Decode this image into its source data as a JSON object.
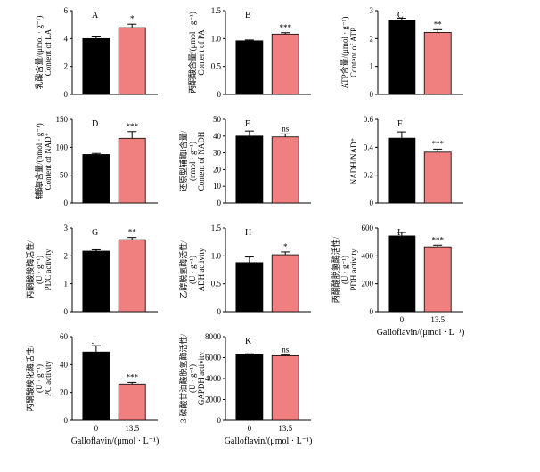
{
  "chart_data": [
    {
      "type": "bar",
      "panel": "A",
      "title": "A",
      "ylabel_cn": "乳酸含量/(μmol · g⁻¹)",
      "ylabel_en": "Content of LA",
      "categories": [
        "0",
        "13.5"
      ],
      "values": [
        4.0,
        4.78
      ],
      "errors": [
        0.18,
        0.25
      ],
      "ylim": [
        0,
        6
      ],
      "yticks": [
        "0",
        "2",
        "4",
        "6"
      ],
      "significance": "*",
      "colors": [
        "#000000",
        "#f08080"
      ]
    },
    {
      "type": "bar",
      "panel": "B",
      "title": "B",
      "ylabel_cn": "丙酮酸含量/(μmol · g⁻¹)",
      "ylabel_en": "Content of PA",
      "categories": [
        "0",
        "13.5"
      ],
      "values": [
        0.96,
        1.08
      ],
      "errors": [
        0.015,
        0.025
      ],
      "ylim": [
        0,
        1.5
      ],
      "yticks": [
        "0",
        "0.5",
        "1.0",
        "1.5"
      ],
      "significance": "***",
      "colors": [
        "#000000",
        "#f08080"
      ]
    },
    {
      "type": "bar",
      "panel": "C",
      "title": "C",
      "ylabel_cn": "ATP含量/(μmol · g⁻¹)",
      "ylabel_en": "Content of ATP",
      "categories": [
        "0",
        "13.5"
      ],
      "values": [
        2.65,
        2.22
      ],
      "errors": [
        0.08,
        0.1
      ],
      "ylim": [
        0,
        3
      ],
      "yticks": [
        "0",
        "1",
        "2",
        "3"
      ],
      "significance": "**",
      "colors": [
        "#000000",
        "#f08080"
      ]
    },
    {
      "type": "bar",
      "panel": "D",
      "title": "D",
      "ylabel_cn": "辅酶I含量/(nmol · g⁻¹)",
      "ylabel_en": "Content of NAD⁺",
      "categories": [
        "0",
        "13.5"
      ],
      "values": [
        87,
        116
      ],
      "errors": [
        2,
        12
      ],
      "ylim": [
        0,
        150
      ],
      "yticks": [
        "0",
        "50",
        "100",
        "150"
      ],
      "significance": "***",
      "colors": [
        "#000000",
        "#f08080"
      ]
    },
    {
      "type": "bar",
      "panel": "E",
      "title": "E",
      "ylabel_cn": "还原型辅酶I含量/",
      "ylabel_cn2": "(nmol · g⁻¹)",
      "ylabel_en": "Content of NADH",
      "categories": [
        "0",
        "13.5"
      ],
      "values": [
        40,
        39.5
      ],
      "errors": [
        3,
        1.8
      ],
      "ylim": [
        0,
        50
      ],
      "yticks": [
        "0",
        "10",
        "20",
        "30",
        "40",
        "50"
      ],
      "significance": "ns",
      "colors": [
        "#000000",
        "#f08080"
      ]
    },
    {
      "type": "bar",
      "panel": "F",
      "title": "F",
      "ylabel_en": "NADH/NAD⁺",
      "categories": [
        "0",
        "13.5"
      ],
      "values": [
        0.465,
        0.365
      ],
      "errors": [
        0.045,
        0.022
      ],
      "ylim": [
        0,
        0.6
      ],
      "yticks": [
        "0",
        "0.2",
        "0.4",
        "0.6"
      ],
      "significance": "***",
      "colors": [
        "#000000",
        "#f08080"
      ]
    },
    {
      "type": "bar",
      "panel": "G",
      "title": "G",
      "ylabel_cn": "丙酮酸羧酶活性/",
      "ylabel_cn2": "(U · g⁻¹)",
      "ylabel_en": "PDC activity",
      "categories": [
        "0",
        "13.5"
      ],
      "values": [
        2.17,
        2.58
      ],
      "errors": [
        0.05,
        0.08
      ],
      "ylim": [
        0,
        3
      ],
      "yticks": [
        "0",
        "1",
        "2",
        "3"
      ],
      "significance": "**",
      "colors": [
        "#000000",
        "#f08080"
      ]
    },
    {
      "type": "bar",
      "panel": "H",
      "title": "H",
      "ylabel_cn": "乙醇脱氢酶活性/",
      "ylabel_cn2": "(U · g⁻¹)",
      "ylabel_en": "ADH activity",
      "categories": [
        "0",
        "13.5"
      ],
      "values": [
        0.88,
        1.02
      ],
      "errors": [
        0.1,
        0.05
      ],
      "ylim": [
        0,
        1.5
      ],
      "yticks": [
        "0",
        "0.5",
        "1.0",
        "1.5"
      ],
      "significance": "*",
      "colors": [
        "#000000",
        "#f08080"
      ]
    },
    {
      "type": "bar",
      "panel": "I",
      "title": "I",
      "ylabel_cn": "丙酮酸脱氢酶活性/",
      "ylabel_cn2": "(U · g⁻¹)",
      "ylabel_en": "PDH activity",
      "categories": [
        "0",
        "13.5"
      ],
      "values": [
        543,
        465
      ],
      "errors": [
        25,
        12
      ],
      "ylim": [
        0,
        600
      ],
      "yticks": [
        "0",
        "200",
        "400",
        "600"
      ],
      "significance": "***",
      "colors": [
        "#000000",
        "#f08080"
      ],
      "xlabel": "Galloflavin/(μmol · L⁻¹)"
    },
    {
      "type": "bar",
      "panel": "J",
      "title": "J",
      "ylabel_cn": "丙酮酸羧化酶活性/",
      "ylabel_cn2": "(U · g⁻¹)",
      "ylabel_en": "PC activity",
      "categories": [
        "0",
        "13.5"
      ],
      "values": [
        49,
        26
      ],
      "errors": [
        4.5,
        1.2
      ],
      "ylim": [
        0,
        60
      ],
      "yticks": [
        "0",
        "20",
        "40",
        "60"
      ],
      "significance": "***",
      "colors": [
        "#000000",
        "#f08080"
      ],
      "xlabel": "Galloflavin/(μmol · L⁻¹)"
    },
    {
      "type": "bar",
      "panel": "K",
      "title": "K",
      "ylabel_cn": "3-磷酸甘油醛脱氢酶活性/",
      "ylabel_cn2": "(U · g⁻¹)",
      "ylabel_en": "GAPDH activity",
      "categories": [
        "0",
        "13.5"
      ],
      "values": [
        6280,
        6180
      ],
      "errors": [
        80,
        90
      ],
      "ylim": [
        0,
        8000
      ],
      "yticks": [
        "0",
        "2000",
        "4000",
        "6000",
        "8000"
      ],
      "significance": "ns",
      "colors": [
        "#000000",
        "#f08080"
      ],
      "xlabel": "Galloflavin/(μmol · L⁻¹)"
    }
  ]
}
